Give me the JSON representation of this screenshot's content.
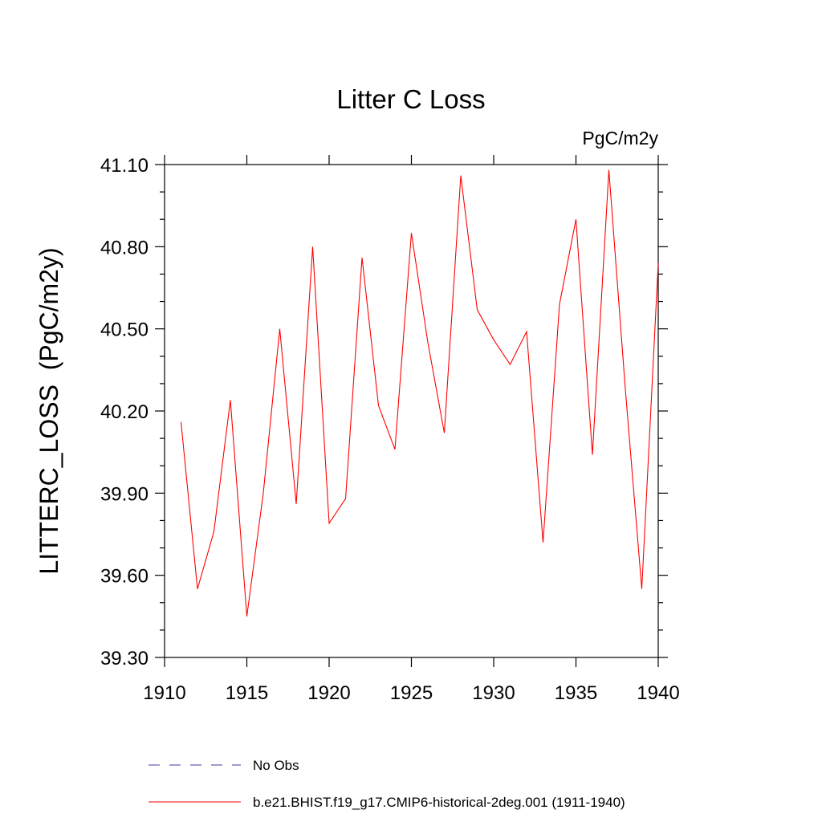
{
  "chart_data": {
    "type": "line",
    "title": "Litter C Loss",
    "units": "PgC/m2y",
    "xlabel": "",
    "ylabel": "LITTERC_LOSS  (PgC/m2y)",
    "xlim": [
      1910,
      1940
    ],
    "ylim": [
      39.3,
      41.1
    ],
    "x_ticks": [
      "1910",
      "1915",
      "1920",
      "1925",
      "1930",
      "1935",
      "1940"
    ],
    "y_ticks": [
      "39.30",
      "39.60",
      "39.90",
      "40.20",
      "40.50",
      "40.80",
      "41.10"
    ],
    "grid": false,
    "legend_placement": "bottom",
    "legend": [
      {
        "label": "No Obs",
        "color": "#6b5fb5",
        "style": "dashed"
      },
      {
        "label": "b.e21.BHIST.f19_g17.CMIP6-historical-2deg.001 (1911-1940)",
        "color": "#ff0000",
        "style": "solid"
      }
    ],
    "series": [
      {
        "name": "b.e21.BHIST.f19_g17.CMIP6-historical-2deg.001 (1911-1940)",
        "color": "#ff0000",
        "x": [
          1911,
          1912,
          1913,
          1914,
          1915,
          1916,
          1917,
          1918,
          1919,
          1920,
          1921,
          1922,
          1923,
          1924,
          1925,
          1926,
          1927,
          1928,
          1929,
          1930,
          1931,
          1932,
          1933,
          1934,
          1935,
          1936,
          1937,
          1938,
          1939,
          1940
        ],
        "values": [
          40.16,
          39.55,
          39.76,
          40.24,
          39.45,
          39.9,
          40.5,
          39.86,
          40.8,
          39.79,
          39.88,
          40.76,
          40.22,
          40.06,
          40.85,
          40.45,
          40.12,
          41.06,
          40.57,
          40.46,
          40.37,
          40.49,
          39.72,
          40.59,
          40.9,
          40.04,
          41.08,
          40.28,
          39.55,
          40.74
        ]
      }
    ]
  }
}
